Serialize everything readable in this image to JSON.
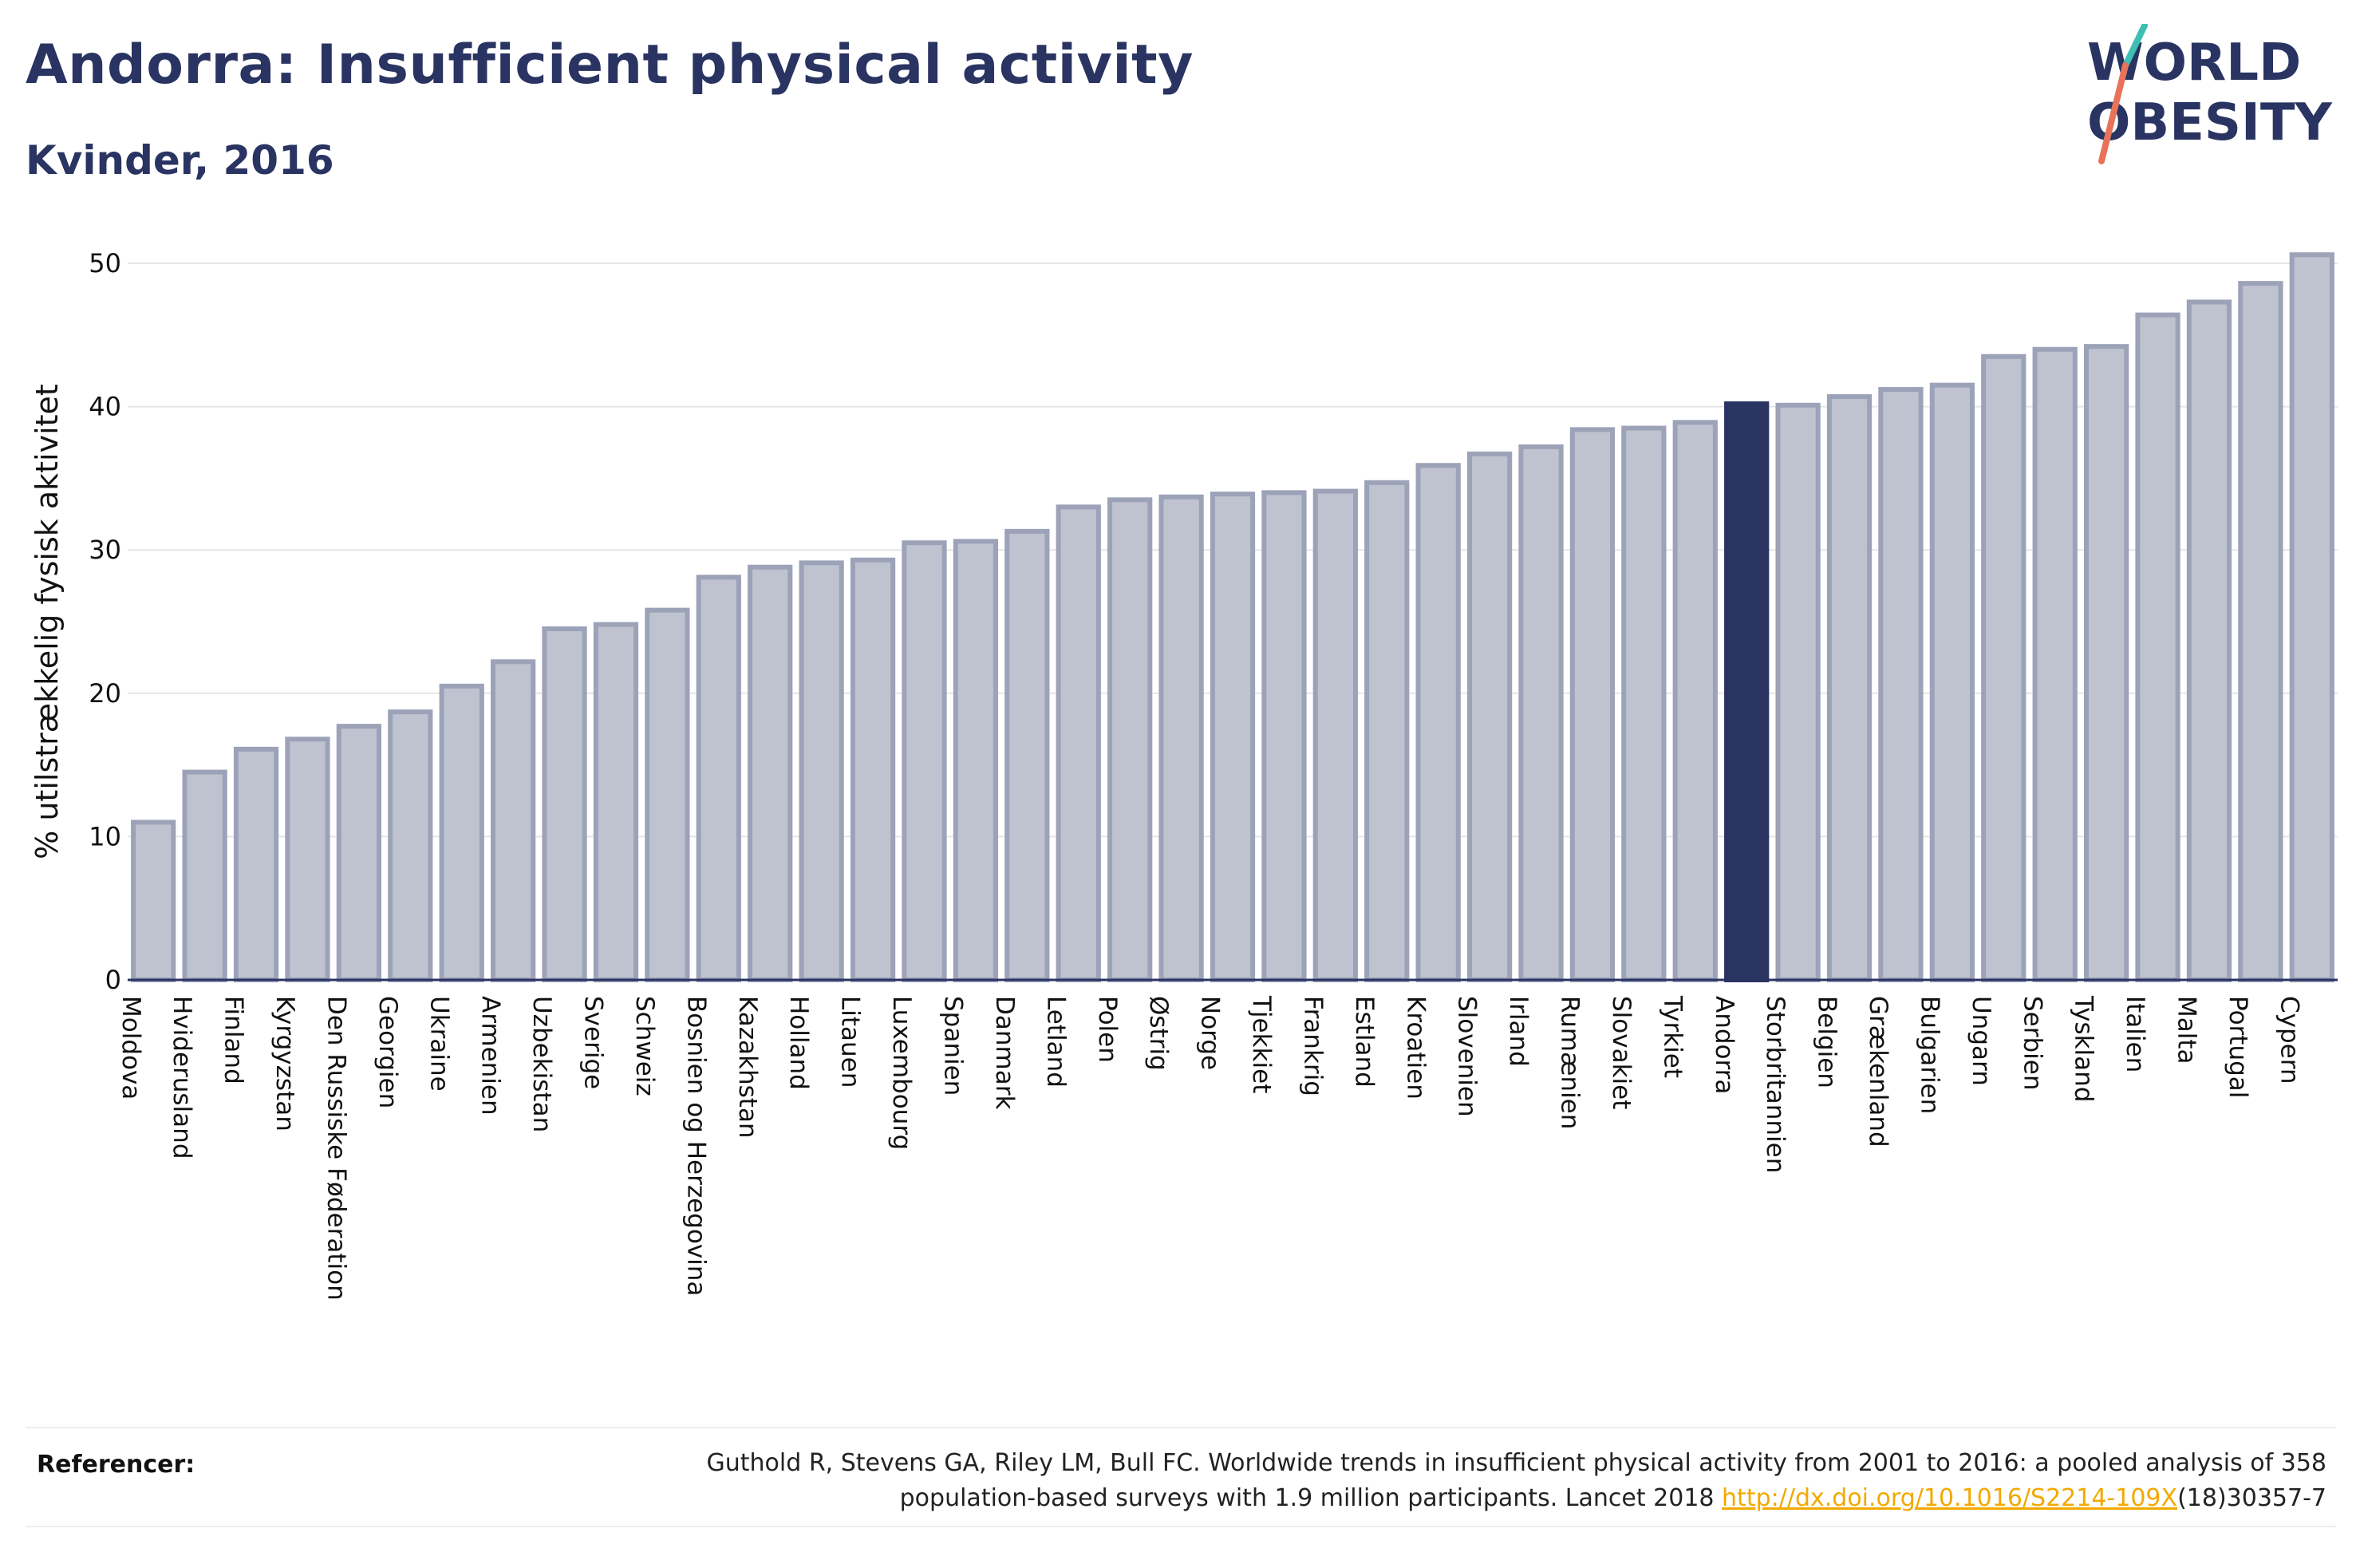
{
  "header": {
    "title": "Andorra: Insufficient physical activity",
    "subtitle": "Kvinder, 2016"
  },
  "logo": {
    "line1": "WORLD",
    "line2": "OBESITY"
  },
  "colors": {
    "bar": "#bfc3d0",
    "bar_stroke": "#9ca2b8",
    "highlight": "#2a3462",
    "axis": "#2a3462",
    "grid": "#e6e6e6"
  },
  "chart_data": {
    "type": "bar",
    "title": "Andorra: Insufficient physical activity",
    "subtitle": "Kvinder, 2016",
    "xlabel": "",
    "ylabel": "% utilstrækkelig fysisk aktivitet",
    "ylim": [
      0,
      52
    ],
    "yticks": [
      0,
      10,
      20,
      30,
      40,
      50
    ],
    "grid": true,
    "highlight": "Andorra",
    "categories": [
      "Moldova",
      "Hviderusland",
      "Finland",
      "Kyrgyzstan",
      "Den Russiske Føderation",
      "Georgien",
      "Ukraine",
      "Armenien",
      "Uzbekistan",
      "Sverige",
      "Schweiz",
      "Bosnien og Herzegovina",
      "Kazakhstan",
      "Holland",
      "Litauen",
      "Luxembourg",
      "Spanien",
      "Danmark",
      "Letland",
      "Polen",
      "Østrig",
      "Norge",
      "Tjekkiet",
      "Frankrig",
      "Estland",
      "Kroatien",
      "Slovenien",
      "Irland",
      "Rumænien",
      "Slovakiet",
      "Tyrkiet",
      "Andorra",
      "Storbritannien",
      "Belgien",
      "Grækenland",
      "Bulgarien",
      "Ungarn",
      "Serbien",
      "Tyskland",
      "Italien",
      "Malta",
      "Portugal",
      "Cypern"
    ],
    "values": [
      11.0,
      14.5,
      16.1,
      16.8,
      17.7,
      18.7,
      20.5,
      22.2,
      24.5,
      24.8,
      25.8,
      28.1,
      28.8,
      29.1,
      29.3,
      30.5,
      30.6,
      31.3,
      33.0,
      33.5,
      33.7,
      33.9,
      34.0,
      34.1,
      34.7,
      35.9,
      36.7,
      37.2,
      38.4,
      38.5,
      38.9,
      40.2,
      40.1,
      40.7,
      41.2,
      41.5,
      43.5,
      44.0,
      44.2,
      46.4,
      47.3,
      48.6,
      50.6
    ]
  },
  "footer": {
    "ref_label": "Referencer:",
    "ref_text_1": "Guthold R, Stevens GA, Riley LM, Bull FC. Worldwide trends in insufficient physical activity from 2001 to 2016: a pooled analysis of 358",
    "ref_text_2": "population-based surveys with 1.9 million participants. Lancet 2018 ",
    "ref_link": "http://dx.doi.org/10.1016/S2214-109X",
    "ref_text_3": "(18)30357-7"
  }
}
